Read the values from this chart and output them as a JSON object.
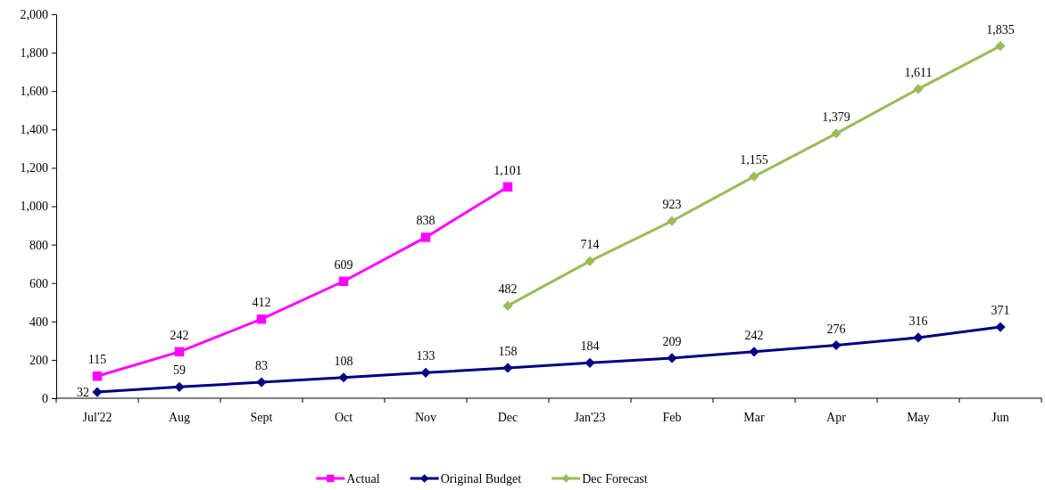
{
  "chart_data": {
    "type": "line",
    "categories": [
      "Jul'22",
      "Aug",
      "Sept",
      "Oct",
      "Nov",
      "Dec",
      "Jan'23",
      "Feb",
      "Mar",
      "Apr",
      "May",
      "Jun"
    ],
    "ylim": [
      0,
      2000
    ],
    "yticks": [
      0,
      200,
      400,
      600,
      800,
      {
        "value": 1000,
        "label": "1,000"
      },
      {
        "value": 1200,
        "label": "1,200"
      },
      {
        "value": 1400,
        "label": "1,400"
      },
      {
        "value": 1600,
        "label": "1,600"
      },
      {
        "value": 1800,
        "label": "1,800"
      },
      {
        "value": 2000,
        "label": "2,000"
      }
    ],
    "legend": "bottom",
    "line_style": "solid",
    "series": [
      {
        "name": "Actual",
        "color": "#ff00ff",
        "marker": "square",
        "values": [
          115,
          242,
          412,
          609,
          838,
          1101,
          null,
          null,
          null,
          null,
          null,
          null
        ],
        "value_labels": [
          "115",
          "242",
          "412",
          "609",
          "838",
          "1,101",
          null,
          null,
          null,
          null,
          null,
          null
        ]
      },
      {
        "name": "Original Budget",
        "color": "#000080",
        "marker": "diamond",
        "values": [
          32,
          59,
          83,
          108,
          133,
          158,
          184,
          209,
          242,
          276,
          316,
          371
        ],
        "value_labels": [
          "32",
          "59",
          "83",
          "108",
          "133",
          "158",
          "184",
          "209",
          "242",
          "276",
          "316",
          "371"
        ]
      },
      {
        "name": "Dec Forecast",
        "color": "#9bbb59",
        "marker": "diamond",
        "values": [
          null,
          null,
          null,
          null,
          null,
          482,
          714,
          923,
          1155,
          1379,
          1611,
          1835
        ],
        "value_labels": [
          null,
          null,
          null,
          null,
          null,
          "482",
          "714",
          "923",
          "1,155",
          "1,379",
          "1,611",
          "1,835"
        ]
      }
    ]
  }
}
